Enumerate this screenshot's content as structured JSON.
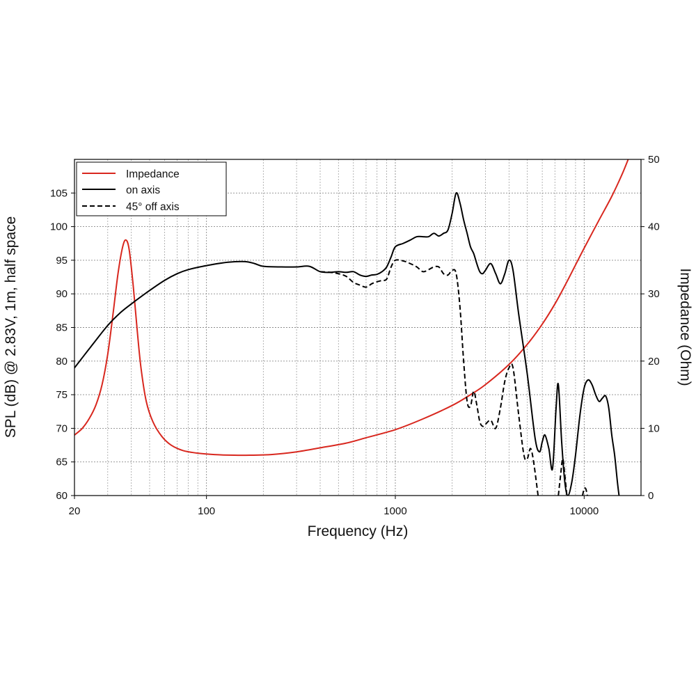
{
  "chart_data": {
    "type": "line",
    "xlabel": "Frequency (Hz)",
    "ylabel_left": "SPL (dB) @ 2.83V, 1m, half space",
    "ylabel_right": "Impedance (Ohm)",
    "x_scale": "log",
    "xlim": [
      20,
      20000
    ],
    "ylim_left": [
      60,
      110
    ],
    "ylim_right": [
      0,
      50
    ],
    "x_ticks": [
      20,
      100,
      1000,
      10000
    ],
    "x_tick_labels": [
      "20",
      "100",
      "1000",
      "10000"
    ],
    "y_left_ticks": [
      60,
      65,
      70,
      75,
      80,
      85,
      90,
      95,
      100,
      105
    ],
    "y_left_tick_labels": [
      "60",
      "65",
      "70",
      "75",
      "80",
      "85",
      "90",
      "95",
      "100",
      "105"
    ],
    "y_right_ticks": [
      0,
      10,
      20,
      30,
      40,
      50
    ],
    "y_right_tick_labels": [
      "0",
      "10",
      "20",
      "30",
      "40",
      "50"
    ],
    "grid": true,
    "legend_position": "top-left",
    "series": [
      {
        "name": "Impedance",
        "axis": "right",
        "color": "#d8271e",
        "style": "solid",
        "points": [
          [
            20,
            9
          ],
          [
            22,
            10
          ],
          [
            24,
            11.5
          ],
          [
            26,
            13.5
          ],
          [
            28,
            16.5
          ],
          [
            30,
            21
          ],
          [
            32,
            27
          ],
          [
            34,
            33
          ],
          [
            36,
            37
          ],
          [
            37.5,
            38
          ],
          [
            39,
            36.5
          ],
          [
            41,
            31
          ],
          [
            43,
            24.5
          ],
          [
            45,
            19
          ],
          [
            48,
            14
          ],
          [
            52,
            11
          ],
          [
            58,
            8.8
          ],
          [
            65,
            7.5
          ],
          [
            75,
            6.7
          ],
          [
            90,
            6.3
          ],
          [
            110,
            6.1
          ],
          [
            140,
            6
          ],
          [
            170,
            6
          ],
          [
            220,
            6.1
          ],
          [
            300,
            6.5
          ],
          [
            400,
            7.1
          ],
          [
            550,
            7.8
          ],
          [
            700,
            8.6
          ],
          [
            1000,
            9.8
          ],
          [
            1400,
            11.4
          ],
          [
            2000,
            13.4
          ],
          [
            2500,
            15
          ],
          [
            3000,
            16.5
          ],
          [
            4000,
            19.5
          ],
          [
            5000,
            22.5
          ],
          [
            6000,
            25.5
          ],
          [
            7000,
            28.5
          ],
          [
            8000,
            31.5
          ],
          [
            9000,
            34.3
          ],
          [
            10000,
            36.8
          ],
          [
            12000,
            41
          ],
          [
            14000,
            44.5
          ],
          [
            16000,
            48
          ],
          [
            18000,
            51.5
          ],
          [
            20000,
            54
          ]
        ]
      },
      {
        "name": "on axis",
        "axis": "left",
        "color": "#000000",
        "style": "solid",
        "points": [
          [
            20,
            79
          ],
          [
            25,
            82.5
          ],
          [
            30,
            85.3
          ],
          [
            35,
            87.2
          ],
          [
            40,
            88.5
          ],
          [
            50,
            90.5
          ],
          [
            60,
            92
          ],
          [
            70,
            93
          ],
          [
            80,
            93.6
          ],
          [
            100,
            94.2
          ],
          [
            130,
            94.7
          ],
          [
            160,
            94.8
          ],
          [
            180,
            94.5
          ],
          [
            200,
            94.1
          ],
          [
            250,
            94
          ],
          [
            300,
            94
          ],
          [
            350,
            94.1
          ],
          [
            400,
            93.3
          ],
          [
            450,
            93.2
          ],
          [
            500,
            93.3
          ],
          [
            550,
            93.2
          ],
          [
            600,
            93.3
          ],
          [
            650,
            92.8
          ],
          [
            700,
            92.6
          ],
          [
            750,
            92.8
          ],
          [
            800,
            92.9
          ],
          [
            850,
            93.3
          ],
          [
            900,
            94
          ],
          [
            950,
            95.5
          ],
          [
            1000,
            97
          ],
          [
            1100,
            97.5
          ],
          [
            1200,
            98
          ],
          [
            1300,
            98.5
          ],
          [
            1400,
            98.5
          ],
          [
            1500,
            98.5
          ],
          [
            1600,
            99
          ],
          [
            1700,
            98.6
          ],
          [
            1800,
            99
          ],
          [
            1900,
            99.5
          ],
          [
            2000,
            102
          ],
          [
            2100,
            105
          ],
          [
            2200,
            103.5
          ],
          [
            2300,
            101
          ],
          [
            2400,
            99
          ],
          [
            2500,
            97
          ],
          [
            2600,
            96
          ],
          [
            2700,
            94.5
          ],
          [
            2800,
            93.3
          ],
          [
            2900,
            93
          ],
          [
            3000,
            93.5
          ],
          [
            3200,
            94.5
          ],
          [
            3400,
            93
          ],
          [
            3600,
            91.5
          ],
          [
            3800,
            93
          ],
          [
            4000,
            95
          ],
          [
            4200,
            93.5
          ],
          [
            4500,
            87
          ],
          [
            5000,
            78
          ],
          [
            5500,
            68.5
          ],
          [
            5800,
            66.5
          ],
          [
            6000,
            68
          ],
          [
            6200,
            69
          ],
          [
            6500,
            67
          ],
          [
            6800,
            64
          ],
          [
            7100,
            73
          ],
          [
            7300,
            76.5
          ],
          [
            7600,
            68
          ],
          [
            7900,
            62
          ],
          [
            8200,
            60
          ],
          [
            8600,
            62
          ],
          [
            9000,
            66
          ],
          [
            9500,
            72
          ],
          [
            10000,
            76
          ],
          [
            10500,
            77.2
          ],
          [
            11000,
            76.5
          ],
          [
            11500,
            75
          ],
          [
            12000,
            74
          ],
          [
            12500,
            74.5
          ],
          [
            13000,
            74.8
          ],
          [
            13500,
            73
          ],
          [
            14000,
            69
          ],
          [
            14500,
            66
          ],
          [
            15000,
            62
          ],
          [
            15300,
            60
          ]
        ]
      },
      {
        "name": "45° off axis",
        "axis": "left",
        "color": "#000000",
        "style": "dashed",
        "points": [
          [
            400,
            93.3
          ],
          [
            450,
            93.2
          ],
          [
            500,
            93
          ],
          [
            550,
            92.6
          ],
          [
            600,
            91.7
          ],
          [
            650,
            91.3
          ],
          [
            700,
            91
          ],
          [
            750,
            91.5
          ],
          [
            800,
            91.8
          ],
          [
            850,
            92
          ],
          [
            900,
            92.2
          ],
          [
            950,
            94
          ],
          [
            1000,
            95
          ],
          [
            1100,
            94.9
          ],
          [
            1200,
            94.5
          ],
          [
            1300,
            94
          ],
          [
            1400,
            93.3
          ],
          [
            1500,
            93.6
          ],
          [
            1600,
            94
          ],
          [
            1700,
            94
          ],
          [
            1800,
            93
          ],
          [
            1900,
            92.8
          ],
          [
            2000,
            93.5
          ],
          [
            2100,
            93
          ],
          [
            2200,
            88
          ],
          [
            2300,
            80
          ],
          [
            2400,
            74
          ],
          [
            2500,
            73.3
          ],
          [
            2600,
            75.5
          ],
          [
            2700,
            73.5
          ],
          [
            2800,
            71
          ],
          [
            2900,
            70.3
          ],
          [
            3000,
            70.6
          ],
          [
            3200,
            71.2
          ],
          [
            3400,
            70
          ],
          [
            3600,
            73
          ],
          [
            3800,
            77
          ],
          [
            4000,
            79
          ],
          [
            4200,
            79
          ],
          [
            4500,
            72
          ],
          [
            4800,
            66
          ],
          [
            5000,
            65.5
          ],
          [
            5200,
            67
          ],
          [
            5400,
            65
          ],
          [
            5700,
            60
          ]
        ]
      },
      {
        "name": "45° off axis",
        "axis": "left",
        "color": "#000000",
        "style": "dashed",
        "points": [
          [
            7300,
            60
          ],
          [
            7500,
            63
          ],
          [
            7700,
            65.5
          ],
          [
            7900,
            63
          ],
          [
            8100,
            60
          ]
        ]
      },
      {
        "name": "45° off axis",
        "axis": "left",
        "color": "#000000",
        "style": "dashed",
        "points": [
          [
            9800,
            60
          ],
          [
            10000,
            61
          ],
          [
            10200,
            61
          ],
          [
            10400,
            60
          ]
        ]
      }
    ]
  },
  "legend": {
    "items": [
      {
        "label": "Impedance",
        "color": "#d8271e",
        "style": "solid"
      },
      {
        "label": "on axis",
        "color": "#000000",
        "style": "solid"
      },
      {
        "label": "45° off axis",
        "color": "#000000",
        "style": "dashed"
      }
    ]
  }
}
